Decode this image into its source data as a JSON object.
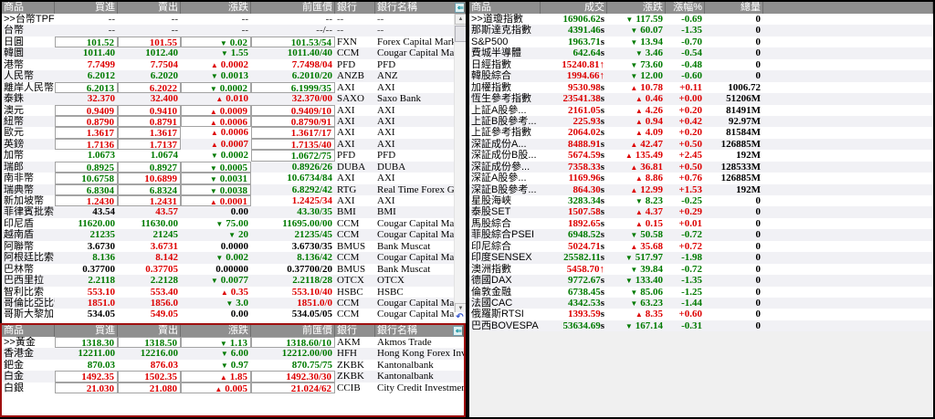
{
  "colors": {
    "up": "#dd0000",
    "down": "#007a00",
    "neutral": "#000000",
    "muted": "#4a4a4a",
    "header_bg": "#8f8f8f",
    "alt_row": "#f1f1f5",
    "commodity_panel_border": "#a01010",
    "empty_bg": "#f0f0f0"
  },
  "icons": {
    "dock_left": "⇐",
    "scroll_up": "▲",
    "scroll_down": "▼",
    "undo": "↶"
  },
  "fx": {
    "headers": [
      "商品",
      "買進",
      "賣出",
      "漲跌",
      "前匯價",
      "銀行",
      "銀行名稱"
    ],
    "rows": [
      {
        "n": ">>台幣TPFI",
        "cells": [
          [
            "--",
            "m",
            0
          ],
          [
            "--",
            "m",
            0
          ],
          [
            "--",
            "m",
            0
          ],
          [
            "--",
            "m",
            0
          ]
        ],
        "bk": "--",
        "bn": "--"
      },
      {
        "n": "台幣",
        "cells": [
          [
            "--",
            "m",
            0
          ],
          [
            "--",
            "m",
            0
          ],
          [
            "--",
            "m",
            0
          ],
          [
            "--/--",
            "m",
            0
          ]
        ],
        "bk": "--",
        "bn": "--"
      },
      {
        "n": "日圓",
        "cells": [
          [
            "101.52",
            "g",
            1
          ],
          [
            "101.55",
            "r",
            1
          ],
          [
            "▼0.02",
            "g",
            1
          ],
          [
            "101.53/54",
            "g",
            1
          ]
        ],
        "bk": "FXN",
        "bn": "Forex Capital Mark..."
      },
      {
        "n": "韓圜",
        "cells": [
          [
            "1011.40",
            "g",
            0
          ],
          [
            "1012.40",
            "g",
            0
          ],
          [
            "▼1.55",
            "g",
            0
          ],
          [
            "1011.40/40",
            "g",
            0
          ]
        ],
        "bk": "CCM",
        "bn": "Cougar Capital Ma..."
      },
      {
        "n": "港幣",
        "cells": [
          [
            "7.7499",
            "r",
            0
          ],
          [
            "7.7504",
            "r",
            0
          ],
          [
            "▲0.0002",
            "r",
            0
          ],
          [
            "7.7498/04",
            "r",
            0
          ]
        ],
        "bk": "PFD",
        "bn": "PFD"
      },
      {
        "n": "人民幣",
        "cells": [
          [
            "6.2012",
            "g",
            0
          ],
          [
            "6.2020",
            "g",
            0
          ],
          [
            "▼0.0013",
            "g",
            0
          ],
          [
            "6.2010/20",
            "g",
            0
          ]
        ],
        "bk": "ANZB",
        "bn": "ANZ"
      },
      {
        "n": "離岸人民幣",
        "cells": [
          [
            "6.2013",
            "g",
            1
          ],
          [
            "6.2022",
            "r",
            1
          ],
          [
            "▼0.0002",
            "g",
            1
          ],
          [
            "6.1999/35",
            "g",
            1
          ]
        ],
        "bk": "AXI",
        "bn": "AXI"
      },
      {
        "n": "泰銖",
        "cells": [
          [
            "32.370",
            "r",
            0
          ],
          [
            "32.400",
            "r",
            0
          ],
          [
            "▲0.010",
            "r",
            0
          ],
          [
            "32.370/00",
            "r",
            0
          ]
        ],
        "bk": "SAXO",
        "bn": "Saxo Bank"
      },
      {
        "n": "澳元",
        "cells": [
          [
            "0.9409",
            "r",
            1
          ],
          [
            "0.9410",
            "r",
            1
          ],
          [
            "▲0.0009",
            "r",
            1
          ],
          [
            "0.9409/10",
            "r",
            1
          ]
        ],
        "bk": "AXI",
        "bn": "AXI"
      },
      {
        "n": "紐幣",
        "cells": [
          [
            "0.8790",
            "r",
            1
          ],
          [
            "0.8791",
            "r",
            1
          ],
          [
            "▲0.0006",
            "r",
            1
          ],
          [
            "0.8790/91",
            "r",
            1
          ]
        ],
        "bk": "AXI",
        "bn": "AXI"
      },
      {
        "n": "歐元",
        "cells": [
          [
            "1.3617",
            "r",
            1
          ],
          [
            "1.3617",
            "r",
            1
          ],
          [
            "▲0.0006",
            "r",
            0
          ],
          [
            "1.3617/17",
            "r",
            1
          ]
        ],
        "bk": "AXI",
        "bn": "AXI"
      },
      {
        "n": "英鎊",
        "cells": [
          [
            "1.7136",
            "r",
            1
          ],
          [
            "1.7137",
            "r",
            1
          ],
          [
            "▲0.0007",
            "r",
            0
          ],
          [
            "1.7135/40",
            "r",
            1
          ]
        ],
        "bk": "AXI",
        "bn": "AXI"
      },
      {
        "n": "加幣",
        "cells": [
          [
            "1.0673",
            "g",
            0
          ],
          [
            "1.0674",
            "g",
            0
          ],
          [
            "▼0.0002",
            "g",
            0
          ],
          [
            "1.0672/75",
            "g",
            1
          ]
        ],
        "bk": "PFD",
        "bn": "PFD"
      },
      {
        "n": "瑞郎",
        "cells": [
          [
            "0.8925",
            "g",
            1
          ],
          [
            "0.8927",
            "g",
            1
          ],
          [
            "▼0.0005",
            "g",
            1
          ],
          [
            "0.8926/26",
            "g",
            0
          ]
        ],
        "bk": "DUBA",
        "bn": "DUBA"
      },
      {
        "n": "南非幣",
        "cells": [
          [
            "10.6758",
            "g",
            1
          ],
          [
            "10.6899",
            "r",
            1
          ],
          [
            "▼0.0031",
            "g",
            1
          ],
          [
            "10.6734/84",
            "g",
            0
          ]
        ],
        "bk": "AXI",
        "bn": "AXI"
      },
      {
        "n": "瑞典幣",
        "cells": [
          [
            "6.8304",
            "g",
            1
          ],
          [
            "6.8324",
            "g",
            1
          ],
          [
            "▼0.0038",
            "g",
            1
          ],
          [
            "6.8292/42",
            "g",
            0
          ]
        ],
        "bk": "RTG",
        "bn": "Real Time Forex G..."
      },
      {
        "n": "新加坡幣",
        "cells": [
          [
            "1.2430",
            "r",
            1
          ],
          [
            "1.2431",
            "r",
            1
          ],
          [
            "▲0.0001",
            "r",
            1
          ],
          [
            "1.2425/34",
            "r",
            0
          ]
        ],
        "bk": "AXI",
        "bn": "AXI"
      },
      {
        "n": "菲律賓批索",
        "cells": [
          [
            "43.54",
            "n",
            0
          ],
          [
            "43.57",
            "r",
            0
          ],
          [
            "0.00",
            "n",
            0
          ],
          [
            "43.30/35",
            "g",
            0
          ]
        ],
        "bk": "BMI",
        "bn": "BMI"
      },
      {
        "n": "印尼盾",
        "cells": [
          [
            "11620.00",
            "g",
            0
          ],
          [
            "11630.00",
            "g",
            0
          ],
          [
            "▼75.00",
            "g",
            0
          ],
          [
            "11695.00/00",
            "g",
            0
          ]
        ],
        "bk": "CCM",
        "bn": "Cougar Capital Ma..."
      },
      {
        "n": "越南盾",
        "cells": [
          [
            "21235",
            "g",
            0
          ],
          [
            "21245",
            "g",
            0
          ],
          [
            "▼20",
            "g",
            0
          ],
          [
            "21235/45",
            "g",
            0
          ]
        ],
        "bk": "CCM",
        "bn": "Cougar Capital Ma..."
      },
      {
        "n": "阿聯幣",
        "cells": [
          [
            "3.6730",
            "n",
            0
          ],
          [
            "3.6731",
            "r",
            0
          ],
          [
            "0.0000",
            "n",
            0
          ],
          [
            "3.6730/35",
            "n",
            0
          ]
        ],
        "bk": "BMUS",
        "bn": "Bank Muscat"
      },
      {
        "n": "阿根廷比索",
        "cells": [
          [
            "8.136",
            "g",
            0
          ],
          [
            "8.142",
            "r",
            0
          ],
          [
            "▼0.002",
            "g",
            0
          ],
          [
            "8.136/42",
            "g",
            0
          ]
        ],
        "bk": "CCM",
        "bn": "Cougar Capital Ma..."
      },
      {
        "n": "巴林幣",
        "cells": [
          [
            "0.37700",
            "n",
            0
          ],
          [
            "0.37705",
            "r",
            0
          ],
          [
            "0.00000",
            "n",
            0
          ],
          [
            "0.37700/20",
            "n",
            0
          ]
        ],
        "bk": "BMUS",
        "bn": "Bank Muscat"
      },
      {
        "n": "巴西里拉",
        "cells": [
          [
            "2.2118",
            "g",
            0
          ],
          [
            "2.2128",
            "g",
            0
          ],
          [
            "▼0.0077",
            "g",
            0
          ],
          [
            "2.2118/28",
            "g",
            0
          ]
        ],
        "bk": "OTCX",
        "bn": "OTCX"
      },
      {
        "n": "智利比索",
        "cells": [
          [
            "553.10",
            "r",
            0
          ],
          [
            "553.40",
            "r",
            0
          ],
          [
            "▲0.35",
            "r",
            0
          ],
          [
            "553.10/40",
            "r",
            0
          ]
        ],
        "bk": "HSBC",
        "bn": "HSBC"
      },
      {
        "n": "哥倫比亞比索",
        "cells": [
          [
            "1851.0",
            "r",
            0
          ],
          [
            "1856.0",
            "r",
            0
          ],
          [
            "▼3.0",
            "g",
            0
          ],
          [
            "1851.0/0",
            "r",
            0
          ]
        ],
        "bk": "CCM",
        "bn": "Cougar Capital Ma..."
      },
      {
        "n": "哥斯大黎加幣",
        "cells": [
          [
            "534.05",
            "n",
            0
          ],
          [
            "549.05",
            "r",
            0
          ],
          [
            "0.00",
            "n",
            0
          ],
          [
            "534.05/05",
            "n",
            0
          ]
        ],
        "bk": "CCM",
        "bn": "Cougar Capital Ma..."
      }
    ]
  },
  "commodities": {
    "headers": [
      "商品",
      "買進",
      "賣出",
      "漲跌",
      "前匯價",
      "銀行",
      "銀行名稱"
    ],
    "rows": [
      {
        "n": ">>黃金",
        "cells": [
          [
            "1318.30",
            "g",
            1
          ],
          [
            "1318.50",
            "g",
            1
          ],
          [
            "▼1.13",
            "g",
            1
          ],
          [
            "1318.60/10",
            "g",
            1
          ]
        ],
        "bk": "AKM",
        "bn": "Akmos Trade"
      },
      {
        "n": "香港金",
        "cells": [
          [
            "12211.00",
            "g",
            0
          ],
          [
            "12216.00",
            "g",
            0
          ],
          [
            "▼6.00",
            "g",
            0
          ],
          [
            "12212.00/00",
            "g",
            0
          ]
        ],
        "bk": "HFH",
        "bn": "Hong Kong Forex Investment"
      },
      {
        "n": "鈀金",
        "cells": [
          [
            "870.03",
            "g",
            0
          ],
          [
            "876.03",
            "r",
            0
          ],
          [
            "▼0.97",
            "g",
            0
          ],
          [
            "870.75/75",
            "g",
            0
          ]
        ],
        "bk": "ZKBK",
        "bn": "Kantonalbank"
      },
      {
        "n": "白金",
        "cells": [
          [
            "1492.35",
            "r",
            1
          ],
          [
            "1502.35",
            "r",
            1
          ],
          [
            "▲1.85",
            "r",
            1
          ],
          [
            "1492.30/30",
            "r",
            1
          ]
        ],
        "bk": "ZKBK",
        "bn": "Kantonalbank"
      },
      {
        "n": "白銀",
        "cells": [
          [
            "21.030",
            "r",
            1
          ],
          [
            "21.080",
            "r",
            1
          ],
          [
            "▲0.005",
            "r",
            1
          ],
          [
            "21.024/62",
            "r",
            1
          ]
        ],
        "bk": "CCIB",
        "bn": "City Credit Investment Bank"
      }
    ]
  },
  "indices": {
    "headers": [
      "商品",
      "成交",
      "漲跌",
      "漲幅%",
      "總量"
    ],
    "rows": [
      {
        "n": ">>道瓊指數",
        "v": "16906.62",
        "sfx": "s",
        "ch": "▼117.59",
        "pct": "-0.69",
        "vol": "0",
        "vc": "g",
        "cc": "g"
      },
      {
        "n": "那斯達克指數",
        "v": "4391.46",
        "sfx": "s",
        "ch": "▼60.07",
        "pct": "-1.35",
        "vol": "0",
        "vc": "g",
        "cc": "g"
      },
      {
        "n": "S&P500",
        "v": "1963.71",
        "sfx": "s",
        "ch": "▼13.94",
        "pct": "-0.70",
        "vol": "0",
        "vc": "g",
        "cc": "g"
      },
      {
        "n": "費城半導體",
        "v": "642.64",
        "sfx": "s",
        "ch": "▼3.46",
        "pct": "-0.54",
        "vol": "0",
        "vc": "g",
        "cc": "g"
      },
      {
        "n": "日經指數",
        "v": "15240.81",
        "sfx": "↑",
        "ch": "▼73.60",
        "pct": "-0.48",
        "vol": "0",
        "vc": "r",
        "cc": "g"
      },
      {
        "n": "韓股綜合",
        "v": "1994.66",
        "sfx": "↑",
        "ch": "▼12.00",
        "pct": "-0.60",
        "vol": "0",
        "vc": "r",
        "cc": "g"
      },
      {
        "n": "加權指數",
        "v": "9530.98",
        "sfx": "s",
        "ch": "▲10.78",
        "pct": "+0.11",
        "vol": "1006.72",
        "vc": "r",
        "cc": "r"
      },
      {
        "n": "恆生參考指數",
        "v": "23541.38",
        "sfx": "s",
        "ch": "▲0.46",
        "pct": "+0.00",
        "vol": "51206M",
        "vc": "r",
        "cc": "r"
      },
      {
        "n": "上証A股參...",
        "v": "2161.05",
        "sfx": "s",
        "ch": "▲4.26",
        "pct": "+0.20",
        "vol": "81491M",
        "vc": "r",
        "cc": "r"
      },
      {
        "n": "上証B股參考...",
        "v": "225.93",
        "sfx": "s",
        "ch": "▲0.94",
        "pct": "+0.42",
        "vol": "92.97M",
        "vc": "r",
        "cc": "r"
      },
      {
        "n": "上証參考指數",
        "v": "2064.02",
        "sfx": "s",
        "ch": "▲4.09",
        "pct": "+0.20",
        "vol": "81584M",
        "vc": "r",
        "cc": "r"
      },
      {
        "n": "深証成份A...",
        "v": "8488.91",
        "sfx": "s",
        "ch": "▲42.47",
        "pct": "+0.50",
        "vol": "126885M",
        "vc": "r",
        "cc": "r"
      },
      {
        "n": "深証成份B股...",
        "v": "5674.59",
        "sfx": "s",
        "ch": "▲135.49",
        "pct": "+2.45",
        "vol": "192M",
        "vc": "r",
        "cc": "r"
      },
      {
        "n": "深証成份參...",
        "v": "7358.33",
        "sfx": "s",
        "ch": "▲36.81",
        "pct": "+0.50",
        "vol": "128533M",
        "vc": "r",
        "cc": "r"
      },
      {
        "n": "深証A股參...",
        "v": "1169.96",
        "sfx": "s",
        "ch": "▲8.86",
        "pct": "+0.76",
        "vol": "126885M",
        "vc": "r",
        "cc": "r"
      },
      {
        "n": "深証B股參考...",
        "v": "864.30",
        "sfx": "s",
        "ch": "▲12.99",
        "pct": "+1.53",
        "vol": "192M",
        "vc": "r",
        "cc": "r"
      },
      {
        "n": "星股海峽",
        "v": "3283.34",
        "sfx": "s",
        "ch": "▼8.23",
        "pct": "-0.25",
        "vol": "0",
        "vc": "g",
        "cc": "g"
      },
      {
        "n": "泰股SET",
        "v": "1507.58",
        "sfx": "s",
        "ch": "▲4.37",
        "pct": "+0.29",
        "vol": "0",
        "vc": "r",
        "cc": "r"
      },
      {
        "n": "馬股綜合",
        "v": "1892.65",
        "sfx": "s",
        "ch": "▲0.15",
        "pct": "+0.01",
        "vol": "0",
        "vc": "r",
        "cc": "r"
      },
      {
        "n": "菲股綜合PSEI",
        "v": "6948.52",
        "sfx": "s",
        "ch": "▼50.58",
        "pct": "-0.72",
        "vol": "0",
        "vc": "g",
        "cc": "g"
      },
      {
        "n": "印尼綜合",
        "v": "5024.71",
        "sfx": "s",
        "ch": "▲35.68",
        "pct": "+0.72",
        "vol": "0",
        "vc": "r",
        "cc": "r"
      },
      {
        "n": "印度SENSEX",
        "v": "25582.11",
        "sfx": "s",
        "ch": "▼517.97",
        "pct": "-1.98",
        "vol": "0",
        "vc": "g",
        "cc": "g"
      },
      {
        "n": "澳洲指數",
        "v": "5458.70",
        "sfx": "↑",
        "ch": "▼39.84",
        "pct": "-0.72",
        "vol": "0",
        "vc": "r",
        "cc": "g"
      },
      {
        "n": "德國DAX",
        "v": "9772.67",
        "sfx": "s",
        "ch": "▼133.40",
        "pct": "-1.35",
        "vol": "0",
        "vc": "g",
        "cc": "g"
      },
      {
        "n": "倫敦金融",
        "v": "6738.45",
        "sfx": "s",
        "ch": "▼85.06",
        "pct": "-1.25",
        "vol": "0",
        "vc": "g",
        "cc": "g"
      },
      {
        "n": "法國CAC",
        "v": "4342.53",
        "sfx": "s",
        "ch": "▼63.23",
        "pct": "-1.44",
        "vol": "0",
        "vc": "g",
        "cc": "g"
      },
      {
        "n": "俄羅斯RTSI",
        "v": "1393.59",
        "sfx": "s",
        "ch": "▲8.35",
        "pct": "+0.60",
        "vol": "0",
        "vc": "r",
        "cc": "r"
      },
      {
        "n": "巴西BOVESPA",
        "v": "53634.69",
        "sfx": "s",
        "ch": "▼167.14",
        "pct": "-0.31",
        "vol": "0",
        "vc": "g",
        "cc": "g"
      }
    ]
  }
}
